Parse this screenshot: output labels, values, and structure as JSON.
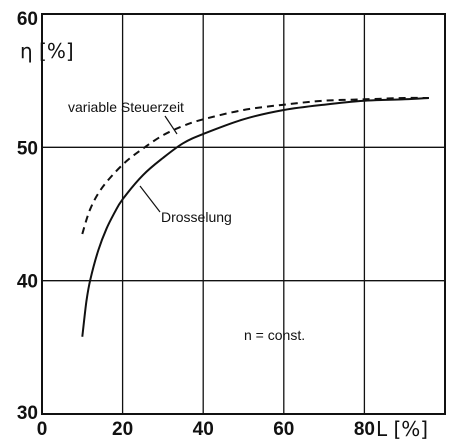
{
  "chart_data": {
    "type": "line",
    "xlabel": "L [%]",
    "ylabel": "η [%]",
    "xlim": [
      0,
      100
    ],
    "ylim": [
      30,
      60
    ],
    "xticks": [
      "0",
      "20",
      "40",
      "60",
      "80"
    ],
    "yticks": [
      "30",
      "40",
      "50",
      "60"
    ],
    "grid": true,
    "series": [
      {
        "name": "variable Steuerzeit",
        "style": "dashed",
        "x": [
          10,
          12,
          15,
          20,
          25,
          30,
          35,
          40,
          50,
          60,
          70,
          80,
          90,
          96
        ],
        "y": [
          43.5,
          45.4,
          47.0,
          48.7,
          49.9,
          50.9,
          51.6,
          52.1,
          52.8,
          53.2,
          53.5,
          53.6,
          53.7,
          53.7
        ]
      },
      {
        "name": "Drosselung",
        "style": "solid",
        "x": [
          10,
          11,
          12,
          14,
          16,
          18,
          20,
          25,
          30,
          35,
          40,
          50,
          60,
          70,
          80,
          90,
          96
        ],
        "y": [
          35.8,
          38.4,
          40.1,
          42.3,
          43.9,
          45.1,
          46.1,
          47.9,
          49.2,
          50.3,
          51.0,
          52.1,
          52.8,
          53.2,
          53.5,
          53.6,
          53.7
        ]
      }
    ],
    "annotations": [
      "n = const."
    ]
  }
}
